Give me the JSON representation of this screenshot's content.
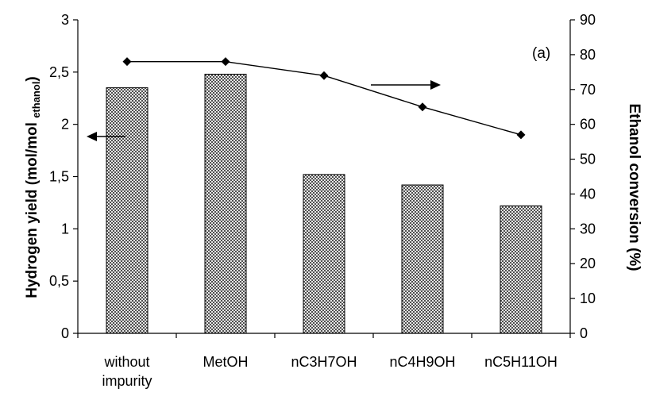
{
  "chart_data": {
    "type": "bar",
    "categories": [
      [
        "without",
        "impurity"
      ],
      [
        "MetOH"
      ],
      [
        "nC3H7OH"
      ],
      [
        "nC4H9OH"
      ],
      [
        "nC5H11OH"
      ]
    ],
    "series": [
      {
        "kind": "bar",
        "axis": "left",
        "values": [
          2.35,
          2.48,
          1.52,
          1.42,
          1.22
        ]
      },
      {
        "kind": "line",
        "axis": "right",
        "marker": "diamond",
        "values": [
          78,
          78,
          74,
          65,
          57
        ]
      }
    ],
    "ylabel": {
      "main": "Hydrogen yield (mol/mol ",
      "sub": "ethanol",
      "end": ")"
    },
    "y2label": "Ethanol conversion (%)",
    "ylim": [
      0,
      3
    ],
    "y2lim": [
      0,
      90
    ],
    "yticks": [
      "0",
      "0,5",
      "1",
      "1,5",
      "2",
      "2,5",
      "3"
    ],
    "y2ticks": [
      "0",
      "10",
      "20",
      "30",
      "40",
      "50",
      "60",
      "70",
      "80",
      "90"
    ],
    "annotation": "(a)",
    "arrows": [
      {
        "points_to": "left-axis",
        "series": "bar"
      },
      {
        "points_to": "right-axis",
        "series": "line"
      }
    ],
    "grid": false,
    "legend": "none",
    "colors": {
      "bar_fill_light": "#e6e6e6",
      "bar_fill_dark": "#505050",
      "bar_edge": "#000000",
      "line": "#000000"
    }
  }
}
